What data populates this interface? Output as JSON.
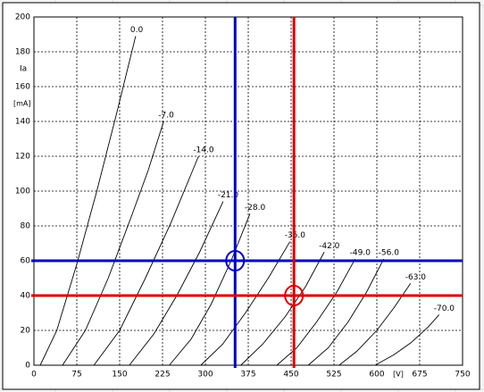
{
  "chart_data": {
    "type": "line",
    "ylabel": "Ia",
    "yunit": "[mA]",
    "xunit": "[V]",
    "xlim": [
      0,
      750
    ],
    "xticks": [
      0,
      75,
      150,
      225,
      300,
      375,
      450,
      525,
      600,
      675,
      750
    ],
    "ylim": [
      0,
      200
    ],
    "yticks": [
      0,
      20,
      40,
      60,
      80,
      100,
      120,
      140,
      160,
      180,
      200
    ],
    "grid": true,
    "series": [
      {
        "name": "0.0",
        "color": "#000000",
        "x": [
          11,
          40,
          75,
          110,
          145,
          178
        ],
        "values": [
          0,
          20,
          58,
          100,
          145,
          189
        ]
      },
      {
        "name": "-7.0",
        "color": "#000000",
        "x": [
          50,
          90,
          130,
          170,
          200,
          227
        ],
        "values": [
          0,
          20,
          50,
          85,
          112,
          140
        ]
      },
      {
        "name": "-14.0",
        "color": "#000000",
        "x": [
          105,
          150,
          195,
          240,
          288
        ],
        "values": [
          0,
          20,
          50,
          82,
          120
        ]
      },
      {
        "name": "-21.0",
        "color": "#000000",
        "x": [
          167,
          210,
          250,
          290,
          331
        ],
        "values": [
          0,
          18,
          40,
          65,
          94
        ]
      },
      {
        "name": "-28.0",
        "color": "#000000",
        "x": [
          237,
          275,
          310,
          345,
          378
        ],
        "values": [
          0,
          15,
          35,
          60,
          87
        ]
      },
      {
        "name": "-35.0",
        "color": "#000000",
        "x": [
          292,
          330,
          370,
          410,
          448
        ],
        "values": [
          0,
          12,
          30,
          50,
          71
        ]
      },
      {
        "name": "-42.0",
        "color": "#000000",
        "x": [
          362,
          400,
          440,
          475,
          508
        ],
        "values": [
          0,
          12,
          28,
          45,
          65
        ]
      },
      {
        "name": "-49.0",
        "color": "#000000",
        "x": [
          425,
          460,
          495,
          530,
          562
        ],
        "values": [
          0,
          10,
          25,
          42,
          61
        ]
      },
      {
        "name": "-56.0",
        "color": "#000000",
        "x": [
          480,
          515,
          550,
          582,
          612
        ],
        "values": [
          0,
          10,
          25,
          42,
          61
        ]
      },
      {
        "name": "-63.0",
        "color": "#000000",
        "x": [
          534,
          565,
          600,
          630,
          659
        ],
        "values": [
          0,
          8,
          20,
          33,
          47
        ]
      },
      {
        "name": "-70.0",
        "color": "#000000",
        "x": [
          597,
          630,
          660,
          690,
          709
        ],
        "values": [
          0,
          6,
          13,
          22,
          29
        ]
      }
    ],
    "cursors": [
      {
        "x": 352,
        "y": 60,
        "color": "#0000cc"
      },
      {
        "x": 455,
        "y": 40,
        "color": "#dd0000"
      }
    ]
  }
}
